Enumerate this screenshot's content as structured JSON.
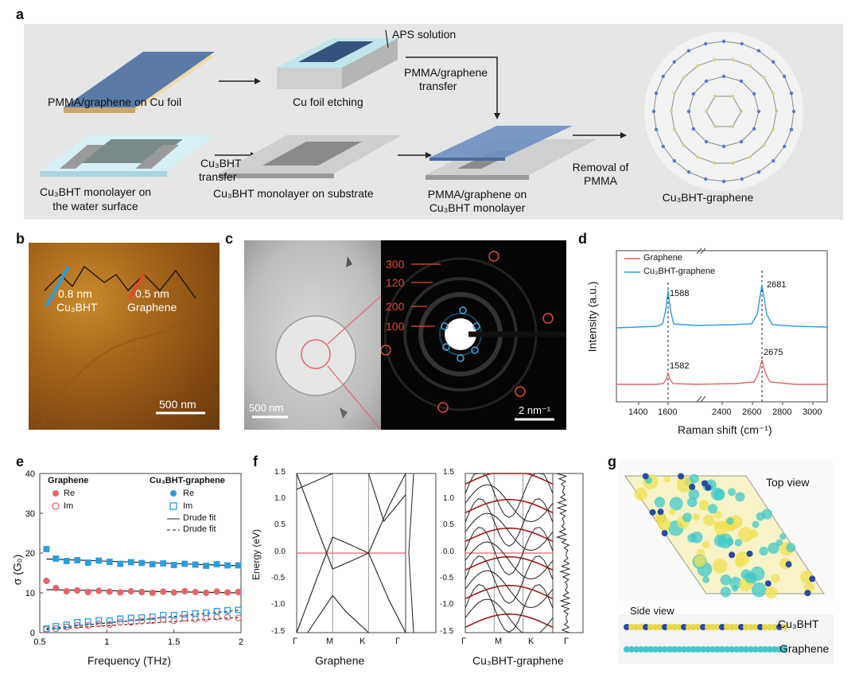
{
  "panel_a": {
    "letter": "a",
    "aps_solution": "APS solution",
    "pmma_graphene_cu": "PMMA/graphene on Cu foil",
    "cu_etching": "Cu foil etching",
    "transfer_1": "PMMA/graphene",
    "transfer_2": "transfer",
    "water_1": "Cu₃BHT monolayer on",
    "water_2": "the water surface",
    "cubht_transfer_1": "Cu₃BHT",
    "cubht_transfer_2": "transfer",
    "on_substrate": "Cu₃BHT monolayer on substrate",
    "pmma_on_1": "PMMA/graphene on",
    "pmma_on_2": "Cu₃BHT monolayer",
    "removal_1": "Removal of",
    "removal_2": "PMMA",
    "cubht_graphene": "Cu₃BHT-graphene"
  },
  "panel_b": {
    "letter": "b",
    "height1": "0.8 nm",
    "mat1": "Cu₃BHT",
    "height2": "0.5 nm",
    "mat2": "Graphene",
    "scale": "500 nm"
  },
  "panel_c": {
    "letter": "c",
    "scale_left": "500 nm",
    "scale_right": "2 nm⁻¹",
    "rings": [
      "300",
      "120",
      "200",
      "100"
    ]
  },
  "panel_d": {
    "letter": "d",
    "chart_data": {
      "type": "line",
      "xlabel": "Raman shift (cm⁻¹)",
      "ylabel": "Intensity (a.u.)",
      "x_ticks": [
        "1400",
        "1600",
        "2400",
        "2600",
        "2800",
        "3000"
      ],
      "series": [
        {
          "name": "Graphene",
          "color": "#e8646a",
          "peaks": [
            "1582",
            "2675"
          ]
        },
        {
          "name": "Cu₃BHT-graphene",
          "color": "#2a9de0",
          "peaks": [
            "1588",
            "2681"
          ]
        }
      ]
    }
  },
  "panel_e": {
    "letter": "e",
    "chart_data": {
      "type": "scatter",
      "xlabel": "Frequency (THz)",
      "ylabel": "σ (G₀)",
      "xlim": [
        0.5,
        2.0
      ],
      "ylim": [
        0,
        40
      ],
      "x_ticks": [
        "0.5",
        "1",
        "1.5",
        "2"
      ],
      "y_ticks": [
        "0",
        "10",
        "20",
        "30",
        "40"
      ],
      "legend_group1": "Graphene",
      "legend_group2": "Cu₃BHT-graphene",
      "legend_re": "Re",
      "legend_im": "Im",
      "legend_fit1": "Drude fit",
      "legend_fit2": "Drude fit",
      "x": [
        0.55,
        0.62,
        0.7,
        0.78,
        0.86,
        0.94,
        1.02,
        1.1,
        1.18,
        1.26,
        1.34,
        1.42,
        1.5,
        1.58,
        1.66,
        1.74,
        1.82,
        1.9,
        1.98
      ],
      "series": [
        {
          "name": "Graphene Re",
          "color": "#e8646a",
          "values": [
            13,
            11.2,
            10.4,
            10.6,
            10.2,
            10.5,
            10.3,
            10.1,
            10.4,
            10.2,
            10.0,
            10.3,
            10.1,
            10.4,
            10.2,
            10.0,
            10.3,
            10.1,
            10.2
          ]
        },
        {
          "name": "Graphene Im",
          "color": "#e8646a",
          "values": [
            0.8,
            1.0,
            1.4,
            1.8,
            1.8,
            2.2,
            2.0,
            2.6,
            2.6,
            2.9,
            3.0,
            3.3,
            3.0,
            3.6,
            3.4,
            3.6,
            3.9,
            3.9,
            3.7
          ]
        },
        {
          "name": "Cu₃BHT-graphene Re",
          "color": "#2a9de0",
          "values": [
            21,
            18.6,
            18.0,
            18.2,
            17.6,
            18.1,
            17.8,
            17.3,
            17.7,
            17.5,
            17.2,
            17.4,
            17.0,
            17.3,
            17.1,
            16.8,
            17.2,
            16.9,
            16.9
          ]
        },
        {
          "name": "Cu₃BHT-graphene Im",
          "color": "#2a9de0",
          "values": [
            1.0,
            1.6,
            2.0,
            2.6,
            2.8,
            3.1,
            3.0,
            3.5,
            3.7,
            3.8,
            4.0,
            4.4,
            4.4,
            4.6,
            4.8,
            5.0,
            5.4,
            5.6,
            5.7
          ]
        }
      ]
    }
  },
  "panel_f": {
    "letter": "f",
    "ylabel": "Energy (eV)",
    "y_ticks": [
      "1.5",
      "1.0",
      "0.5",
      "0.0",
      "-0.5",
      "-1.0",
      "-1.5"
    ],
    "k_labels": [
      "Γ",
      "M",
      "K",
      "Γ"
    ],
    "left_title": "Graphene",
    "right_title": "Cu₃BHT-graphene"
  },
  "panel_g": {
    "letter": "g",
    "top_view": "Top view",
    "side_view": "Side view",
    "layer1": "Cu₃BHT",
    "layer2": "Graphene"
  }
}
